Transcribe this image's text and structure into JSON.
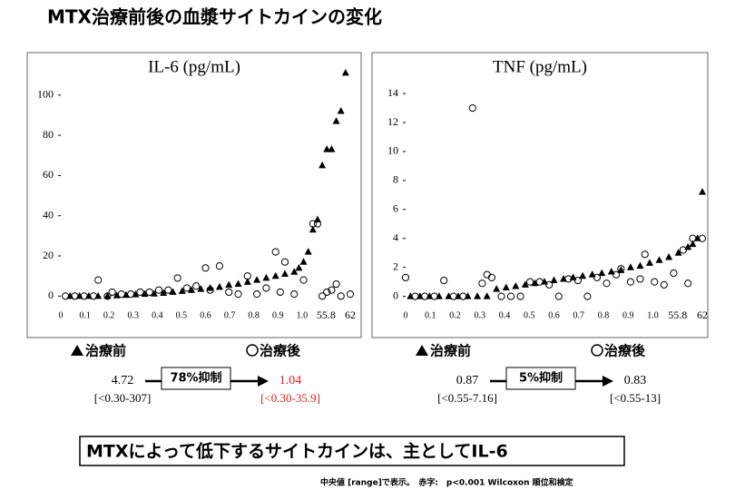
{
  "title": "MTX治療前後の血漿サイトカインの変化",
  "conclusion": "MTXによって低下するサイトカインは、主としてIL-6",
  "footnote": "中央値 [range]で表示。　赤字:　p<0.001 Wilcoxon 順位和検定",
  "chart_data": [
    {
      "type": "scatter",
      "title": "IL-6 (pg/mL)",
      "xlim": [
        0,
        62
      ],
      "ylim": [
        -3,
        113
      ],
      "yticks": [
        0,
        20,
        40,
        60,
        80,
        100
      ],
      "xtick_labels": [
        "0",
        "0.1",
        "0.2",
        "0.3",
        "0.4",
        "0.5",
        "0.6",
        "0.7",
        "0.8",
        "0.9",
        "1.0",
        "55.8",
        "62"
      ],
      "series": [
        {
          "name": "治療前",
          "marker": "triangle",
          "color": "#000000",
          "x": [
            2,
            4,
            6,
            8,
            10,
            12,
            14,
            16,
            18,
            20,
            22,
            24,
            26,
            28,
            30,
            32,
            34,
            36,
            38,
            40,
            42,
            44,
            46,
            48,
            50,
            51,
            52,
            53,
            54,
            55,
            56,
            57,
            58,
            59,
            60,
            61
          ],
          "values": [
            0,
            0,
            0,
            0,
            0,
            0.3,
            0.5,
            0.8,
            1,
            1.2,
            1.5,
            2,
            2.5,
            3,
            3.5,
            4,
            4.5,
            5.5,
            6,
            7,
            8,
            9,
            10,
            11,
            12,
            14,
            17,
            22,
            33,
            38,
            65,
            73,
            73,
            87,
            92,
            111
          ]
        },
        {
          "name": "治療後",
          "marker": "circle",
          "color": "#000000",
          "x": [
            1,
            3,
            5,
            7,
            8,
            10,
            11,
            13,
            15,
            17,
            19,
            21,
            23,
            25,
            27,
            29,
            31,
            32,
            34,
            36,
            38,
            40,
            42,
            44,
            46,
            47,
            48,
            50,
            52,
            54,
            55,
            56,
            57,
            58,
            59,
            60,
            62
          ],
          "values": [
            0,
            0,
            0,
            0,
            8,
            0,
            2,
            1,
            1,
            2,
            2,
            3,
            3,
            9,
            4,
            5,
            14,
            3,
            15,
            2,
            1,
            10,
            1,
            4,
            22,
            2,
            17,
            1,
            8,
            36,
            36,
            0,
            2,
            3,
            6,
            0,
            1
          ]
        }
      ],
      "summary": {
        "before": "4.72",
        "before_range": "[<0.30-307]",
        "suppression": "78%抑制",
        "after": "1.04",
        "after_range": "[<0.30-35.9]",
        "after_color": "#e02020"
      }
    },
    {
      "type": "scatter",
      "title": "TNF (pg/mL)",
      "xlim": [
        0,
        62
      ],
      "ylim": [
        -0.4,
        15.7
      ],
      "yticks": [
        0,
        2,
        4,
        6,
        8,
        10,
        12,
        14
      ],
      "xtick_labels": [
        "0",
        "0.1",
        "0.2",
        "0.3",
        "0.4",
        "0.5",
        "0.6",
        "0.7",
        "0.8",
        "0.9",
        "1.0",
        "55.8",
        "62"
      ],
      "series": [
        {
          "name": "治療前",
          "marker": "triangle",
          "color": "#000000",
          "x": [
            1,
            3,
            5,
            7,
            9,
            11,
            13,
            15,
            17,
            19,
            21,
            23,
            25,
            27,
            29,
            31,
            33,
            35,
            37,
            39,
            41,
            43,
            45,
            47,
            49,
            51,
            53,
            55,
            57,
            59,
            60,
            61,
            62
          ],
          "values": [
            0,
            0,
            0,
            0,
            0,
            0,
            0,
            0,
            0,
            0.5,
            0.6,
            0.7,
            0.8,
            0.9,
            1.0,
            1.1,
            1.2,
            1.3,
            1.4,
            1.5,
            1.6,
            1.7,
            1.8,
            2.0,
            2.1,
            2.3,
            2.5,
            2.7,
            3.0,
            3.4,
            3.6,
            4.0,
            7.2
          ]
        },
        {
          "name": "治療後",
          "marker": "circle",
          "color": "#000000",
          "x": [
            0,
            2,
            4,
            6,
            8,
            10,
            12,
            14,
            16,
            17,
            18,
            20,
            22,
            24,
            26,
            28,
            30,
            32,
            34,
            36,
            38,
            40,
            42,
            44,
            45,
            47,
            49,
            50,
            52,
            54,
            56,
            58,
            59,
            60,
            62
          ],
          "values": [
            1.3,
            0,
            0,
            0,
            1.1,
            0,
            0,
            13,
            0.9,
            1.5,
            1.3,
            0,
            0,
            0,
            1,
            1,
            0.8,
            0,
            1.2,
            1.1,
            0,
            1.3,
            0.9,
            1.5,
            1.9,
            1.0,
            1.2,
            2.9,
            1.0,
            0.8,
            1.6,
            3.2,
            0.9,
            4.0,
            4.0
          ]
        }
      ],
      "summary": {
        "before": "0.87",
        "before_range": "[<0.55-7.16]",
        "suppression": "5%抑制",
        "after": "0.83",
        "after_range": "[<0.55-13]",
        "after_color": "#000000"
      }
    }
  ]
}
